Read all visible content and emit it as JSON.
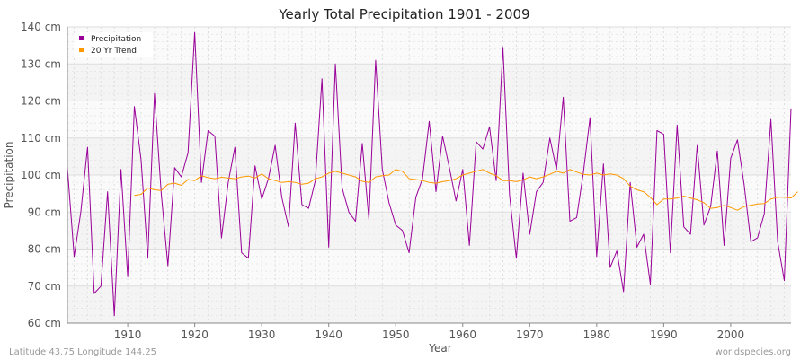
{
  "chart_data": {
    "type": "line",
    "title": "Yearly Total Precipitation 1901 - 2009",
    "xlabel": "Year",
    "ylabel": "Precipitation",
    "xlim": [
      1901,
      2009
    ],
    "ylim": [
      60,
      140
    ],
    "x_ticks": [
      1910,
      1920,
      1930,
      1940,
      1950,
      1960,
      1970,
      1980,
      1990,
      2000
    ],
    "y_ticks": [
      {
        "value": 60,
        "label": "60 cm"
      },
      {
        "value": 70,
        "label": "70 cm"
      },
      {
        "value": 80,
        "label": "80 cm"
      },
      {
        "value": 90,
        "label": "90 cm"
      },
      {
        "value": 100,
        "label": "100 cm"
      },
      {
        "value": 110,
        "label": "110 cm"
      },
      {
        "value": 120,
        "label": "120 cm"
      },
      {
        "value": 130,
        "label": "130 cm"
      },
      {
        "value": 140,
        "label": "140 cm"
      }
    ],
    "grid": true,
    "legend_position": "top-left",
    "series": [
      {
        "name": "Precipitation",
        "color": "#990099",
        "x_start": 1901,
        "values": [
          102,
          78,
          90,
          107.5,
          68,
          70,
          95.5,
          62,
          101.5,
          72.5,
          118.5,
          104,
          77.5,
          122,
          95,
          75.5,
          102,
          99.5,
          106,
          138.5,
          98,
          112,
          110.5,
          83,
          98,
          107.5,
          79,
          77.5,
          102.5,
          93.5,
          99,
          108,
          94,
          86,
          114,
          92,
          91,
          98.5,
          126,
          80.5,
          130,
          96.5,
          90,
          87.5,
          108.5,
          88,
          131,
          101.5,
          92.5,
          86.5,
          85,
          79,
          94,
          99,
          114.5,
          95.5,
          110.5,
          102,
          93,
          101.5,
          81,
          109,
          107,
          113,
          98.5,
          134.5,
          94.5,
          77.5,
          100.5,
          84,
          95.5,
          98,
          110,
          101.5,
          121,
          87.5,
          88.5,
          100.5,
          115.5,
          78,
          103,
          75,
          79.5,
          68.5,
          98,
          80.5,
          84,
          70.5,
          112,
          111,
          79,
          113.5,
          86,
          84,
          108,
          86.5,
          91.5,
          106.5,
          81,
          104.5,
          109.5,
          97.5,
          82,
          83,
          89.5,
          115,
          82,
          71.5,
          118
        ]
      },
      {
        "name": "20 Yr Trend",
        "color": "#ff9900",
        "x_start": 1911,
        "values": [
          94.5,
          94.8,
          96.5,
          96,
          95.8,
          97.5,
          97.8,
          97.2,
          98.8,
          98.5,
          99.8,
          99.3,
          99.0,
          99.4,
          99.2,
          99.0,
          99.5,
          99.7,
          99.2,
          100.3,
          99.0,
          98.5,
          98.0,
          98.2,
          98.0,
          97.5,
          97.8,
          99.0,
          99.5,
          100.5,
          101.0,
          100.5,
          100.0,
          99.5,
          98.3,
          98.0,
          99.5,
          99.8,
          100.0,
          101.5,
          101.0,
          99.0,
          98.8,
          98.5,
          98.0,
          97.8,
          98.2,
          98.5,
          99.0,
          100.0,
          100.5,
          101.0,
          101.5,
          100.5,
          99.8,
          98.5,
          98.5,
          98.2,
          98.7,
          99.5,
          99.0,
          99.5,
          100.2,
          101.0,
          100.5,
          101.5,
          100.8,
          100.2,
          100.0,
          100.5,
          100.0,
          100.3,
          100.0,
          99.0,
          97.0,
          96.0,
          95.5,
          94.0,
          92.0,
          93.5,
          93.5,
          93.8,
          94.3,
          93.8,
          93.3,
          92.5,
          91.0,
          91.2,
          91.8,
          91.2,
          90.5,
          91.5,
          91.8,
          92.2,
          92.3,
          93.5,
          94.0,
          94.0,
          93.8,
          95.5
        ]
      }
    ]
  },
  "footer": {
    "location": "Latitude 43.75 Longitude 144.25",
    "source": "worldspecies.org"
  }
}
